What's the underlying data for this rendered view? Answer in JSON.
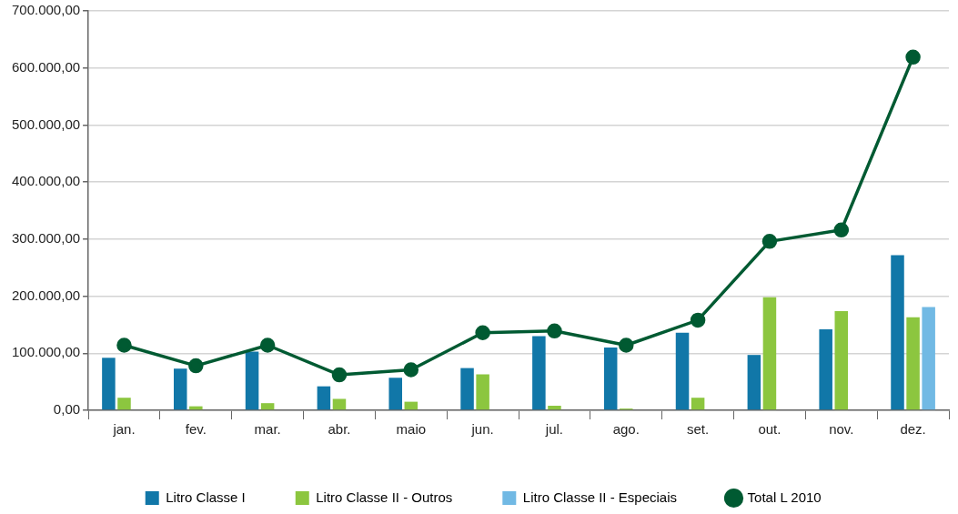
{
  "chart_data": {
    "type": "bar",
    "categories": [
      "jan.",
      "fev.",
      "mar.",
      "abr.",
      "maio",
      "jun.",
      "jul.",
      "ago.",
      "set.",
      "out.",
      "nov.",
      "dez."
    ],
    "series": [
      {
        "name": "Litro Classe I",
        "color": "#1177a8",
        "values": [
          92000,
          73000,
          103000,
          42000,
          57000,
          74000,
          130000,
          110000,
          136000,
          97000,
          142000,
          272000
        ]
      },
      {
        "name": "Litro Classe II - Outros",
        "color": "#8cc63f",
        "values": [
          22000,
          7000,
          12500,
          20000,
          15000,
          63000,
          8000,
          3000,
          22000,
          198000,
          174000,
          163000
        ]
      },
      {
        "name": "Litro Classe II - Especiais",
        "color": "#71b9e4",
        "values": [
          null,
          null,
          null,
          null,
          null,
          null,
          null,
          null,
          null,
          null,
          null,
          181000
        ]
      },
      {
        "name": "Total L 2010",
        "type": "line",
        "color": "#005a32",
        "marker": "circle",
        "values": [
          114000,
          78000,
          114000,
          62000,
          71000,
          136000,
          139000,
          114000,
          158000,
          296000,
          316000,
          619000
        ]
      }
    ],
    "ylim": [
      0,
      700000
    ],
    "yticks": [
      {
        "value": 0,
        "label": "0,00"
      },
      {
        "value": 100000,
        "label": "100.000,00"
      },
      {
        "value": 200000,
        "label": "200.000,00"
      },
      {
        "value": 300000,
        "label": "300.000,00"
      },
      {
        "value": 400000,
        "label": "400.000,00"
      },
      {
        "value": 500000,
        "label": "500.000,00"
      },
      {
        "value": 600000,
        "label": "600.000,00"
      },
      {
        "value": 700000,
        "label": "700.000,00"
      }
    ],
    "grid": "y",
    "legend": "bottom"
  }
}
